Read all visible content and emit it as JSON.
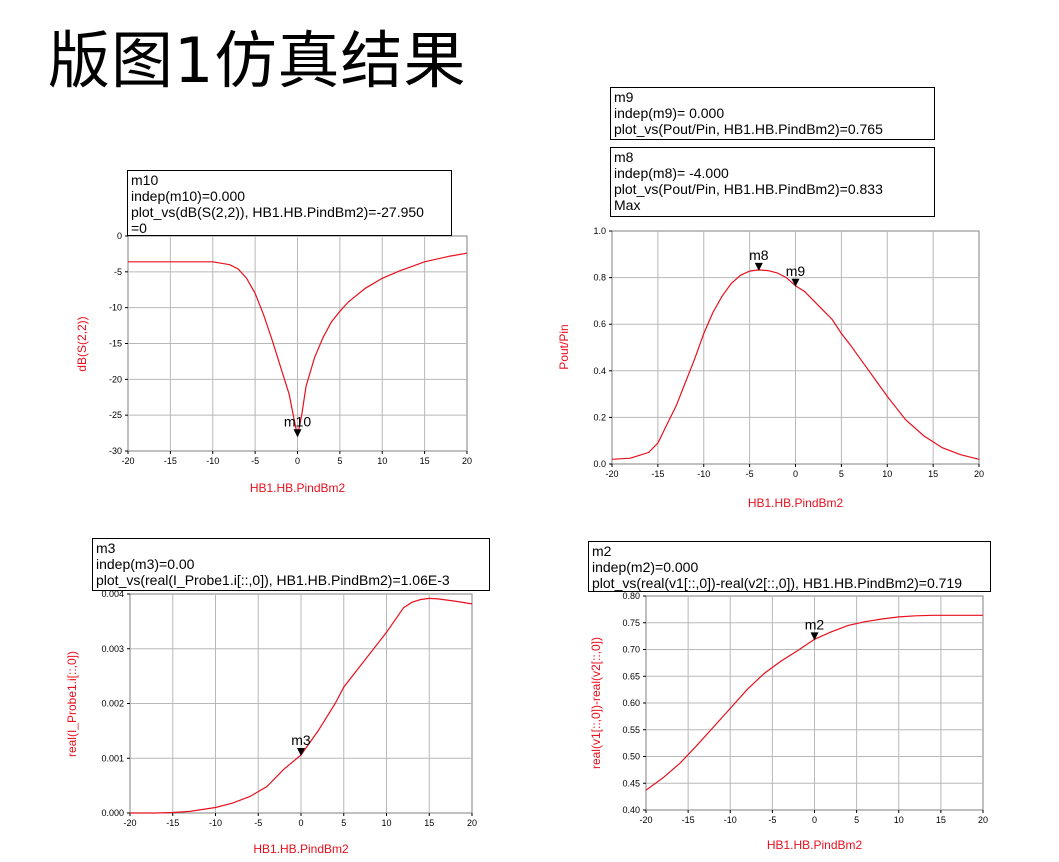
{
  "page": {
    "title": "版图1仿真结果"
  },
  "chart_data": [
    {
      "id": "s22",
      "type": "line",
      "title": "",
      "xlabel": "HB1.HB.PindBm2",
      "ylabel": "dB(S(2,2))",
      "xlim": [
        -20,
        20
      ],
      "ylim": [
        -30,
        0
      ],
      "xticks": [
        -20,
        -15,
        -10,
        -5,
        0,
        5,
        10,
        15,
        20
      ],
      "yticks": [
        0,
        -5,
        -10,
        -15,
        -20,
        -25,
        -30
      ],
      "ytick_labels": [
        "0",
        "-5",
        "-10",
        "-15",
        "-20",
        "-25",
        "-30"
      ],
      "grid": true,
      "x": [
        -20,
        -15,
        -10,
        -8,
        -7,
        -6,
        -5,
        -4,
        -3,
        -2,
        -1,
        -0.5,
        0,
        0.5,
        1,
        2,
        3,
        4,
        5,
        6,
        8,
        10,
        12,
        15,
        18,
        20
      ],
      "y": [
        -3.6,
        -3.6,
        -3.6,
        -4.0,
        -4.6,
        -5.9,
        -8.0,
        -11.0,
        -14.5,
        -18.3,
        -22.0,
        -25.0,
        -27.95,
        -25.0,
        -21.0,
        -17.0,
        -14.2,
        -12.0,
        -10.5,
        -9.2,
        -7.3,
        -5.9,
        -4.9,
        -3.6,
        -2.8,
        -2.4
      ],
      "markers": [
        {
          "name": "m10",
          "x": 0,
          "y": -27.95,
          "lines": [
            "m10",
            "indep(m10)=0.000",
            "plot_vs(dB(S(2,2)), HB1.HB.PindBm2)=-27.950",
            "=0"
          ]
        }
      ]
    },
    {
      "id": "poutpin",
      "type": "line",
      "title": "",
      "xlabel": "HB1.HB.PindBm2",
      "ylabel": "Pout/Pin",
      "xlim": [
        -20,
        20
      ],
      "ylim": [
        0,
        1
      ],
      "xticks": [
        -20,
        -15,
        -10,
        -5,
        0,
        5,
        10,
        15,
        20
      ],
      "yticks": [
        0,
        0.2,
        0.4,
        0.6,
        0.8,
        1.0
      ],
      "ytick_labels": [
        "0.0",
        "0.2",
        "0.4",
        "0.6",
        "0.8",
        "1.0"
      ],
      "grid": true,
      "x": [
        -20,
        -18,
        -16,
        -15,
        -14,
        -13,
        -12,
        -11,
        -10,
        -9,
        -8,
        -7,
        -6,
        -5,
        -4,
        -3,
        -2,
        -1,
        0,
        1,
        2,
        3,
        4,
        5,
        6,
        8,
        10,
        12,
        14,
        16,
        18,
        20
      ],
      "y": [
        0.02,
        0.025,
        0.05,
        0.09,
        0.17,
        0.25,
        0.35,
        0.45,
        0.56,
        0.65,
        0.72,
        0.775,
        0.81,
        0.828,
        0.833,
        0.83,
        0.82,
        0.8,
        0.765,
        0.74,
        0.7,
        0.66,
        0.62,
        0.56,
        0.51,
        0.4,
        0.29,
        0.19,
        0.12,
        0.07,
        0.04,
        0.02
      ],
      "markers": [
        {
          "name": "m8",
          "x": -4,
          "y": 0.833,
          "lines": [
            "m8",
            "indep(m8)= -4.000",
            "plot_vs(Pout/Pin, HB1.HB.PindBm2)=0.833",
            "Max"
          ]
        },
        {
          "name": "m9",
          "x": 0,
          "y": 0.765,
          "lines": [
            "m9",
            "indep(m9)= 0.000",
            "plot_vs(Pout/Pin, HB1.HB.PindBm2)=0.765"
          ]
        }
      ]
    },
    {
      "id": "probe",
      "type": "line",
      "title": "",
      "xlabel": "HB1.HB.PindBm2",
      "ylabel": "real(I_Probe1.i[::,0])",
      "xlim": [
        -20,
        20
      ],
      "ylim": [
        0,
        0.004
      ],
      "xticks": [
        -20,
        -15,
        -10,
        -5,
        0,
        5,
        10,
        15,
        20
      ],
      "yticks": [
        0,
        0.001,
        0.002,
        0.003,
        0.004
      ],
      "ytick_labels": [
        "0.000",
        "0.001",
        "0.002",
        "0.003",
        "0.004"
      ],
      "grid": true,
      "x": [
        -20,
        -17,
        -15,
        -13,
        -10,
        -8,
        -6,
        -4,
        -2,
        0,
        2,
        4,
        5,
        6,
        8,
        10,
        12,
        13,
        14,
        15,
        16,
        18,
        20
      ],
      "y": [
        0,
        0,
        1e-05,
        3e-05,
        0.0001,
        0.00018,
        0.0003,
        0.00048,
        0.0008,
        0.00106,
        0.0015,
        0.002,
        0.0023,
        0.0025,
        0.0029,
        0.0033,
        0.00375,
        0.00385,
        0.0039,
        0.00392,
        0.00391,
        0.00387,
        0.00382
      ],
      "markers": [
        {
          "name": "m3",
          "x": 0,
          "y": 0.00106,
          "lines": [
            "m3",
            "indep(m3)=0.00",
            "plot_vs(real(I_Probe1.i[::,0]), HB1.HB.PindBm2)=1.06E-3"
          ]
        }
      ]
    },
    {
      "id": "vdiff",
      "type": "line",
      "title": "",
      "xlabel": "HB1.HB.PindBm2",
      "ylabel": "real(v1[::,0])-real(v2[::,0])",
      "xlim": [
        -20,
        20
      ],
      "ylim": [
        0.4,
        0.8
      ],
      "xticks": [
        -20,
        -15,
        -10,
        -5,
        0,
        5,
        10,
        15,
        20
      ],
      "yticks": [
        0.4,
        0.45,
        0.5,
        0.55,
        0.6,
        0.65,
        0.7,
        0.75,
        0.8
      ],
      "ytick_labels": [
        "0.40",
        "0.45",
        "0.50",
        "0.55",
        "0.60",
        "0.65",
        "0.70",
        "0.75",
        "0.80"
      ],
      "grid": true,
      "x": [
        -20,
        -18,
        -16,
        -14,
        -12,
        -10,
        -8,
        -6,
        -4,
        -2,
        0,
        2,
        4,
        6,
        8,
        10,
        12,
        14,
        16,
        18,
        20
      ],
      "y": [
        0.437,
        0.46,
        0.487,
        0.52,
        0.555,
        0.59,
        0.625,
        0.655,
        0.678,
        0.698,
        0.719,
        0.733,
        0.745,
        0.752,
        0.757,
        0.761,
        0.763,
        0.764,
        0.764,
        0.764,
        0.764
      ],
      "markers": [
        {
          "name": "m2",
          "x": 0,
          "y": 0.719,
          "lines": [
            "m2",
            "indep(m2)=0.000",
            "plot_vs(real(v1[::,0])-real(v2[::,0]), HB1.HB.PindBm2)=0.719"
          ]
        }
      ]
    }
  ]
}
